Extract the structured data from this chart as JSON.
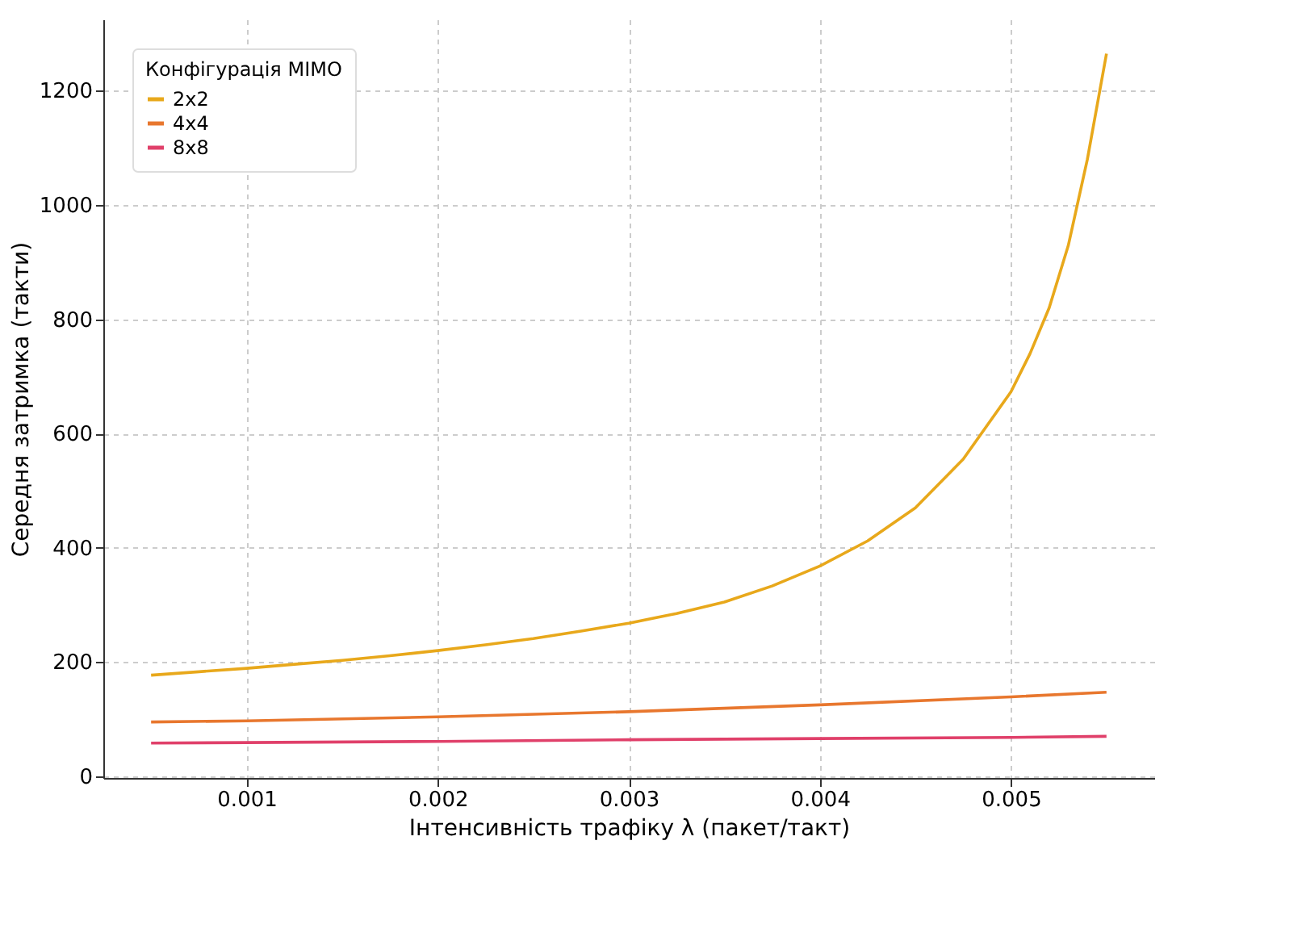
{
  "chart_data": {
    "type": "line",
    "xlabel": "Інтенсивність трафіку λ (пакет/такт)",
    "ylabel": "Середня затримка (такти)",
    "legend_title": "Конфігурація MIMO",
    "legend": "top left",
    "grid": true,
    "line_style": "solid",
    "marker": "none",
    "xlim": [
      0.00025,
      0.00575
    ],
    "xticks": [
      0.001,
      0.002,
      0.003,
      0.004,
      0.005
    ],
    "ylim": [
      -3,
      1325
    ],
    "yticks": [
      0,
      200,
      400,
      600,
      800,
      1000,
      1200
    ],
    "series": [
      {
        "name": "2x2",
        "color": "#e8a81b",
        "x": [
          0.0005,
          0.00075,
          0.001,
          0.00125,
          0.0015,
          0.00175,
          0.002,
          0.00225,
          0.0025,
          0.00275,
          0.003,
          0.00325,
          0.0035,
          0.00375,
          0.004,
          0.00425,
          0.0045,
          0.00475,
          0.005,
          0.0051,
          0.0052,
          0.0053,
          0.0054,
          0.0055
        ],
        "values": [
          177,
          183,
          189,
          196,
          203,
          211,
          220,
          230,
          241,
          254,
          268,
          285,
          305,
          333,
          368,
          412,
          470,
          555,
          673,
          740,
          820,
          929,
          1080,
          1265
        ]
      },
      {
        "name": "4x4",
        "color": "#e8772e",
        "x": [
          0.0005,
          0.001,
          0.002,
          0.003,
          0.004,
          0.005,
          0.0055
        ],
        "values": [
          95,
          97,
          104,
          113,
          125,
          139,
          147
        ]
      },
      {
        "name": "8x8",
        "color": "#e0406a",
        "x": [
          0.0005,
          0.001,
          0.002,
          0.003,
          0.004,
          0.005,
          0.0055
        ],
        "values": [
          58,
          59,
          61,
          64,
          66,
          68,
          70
        ]
      }
    ]
  }
}
